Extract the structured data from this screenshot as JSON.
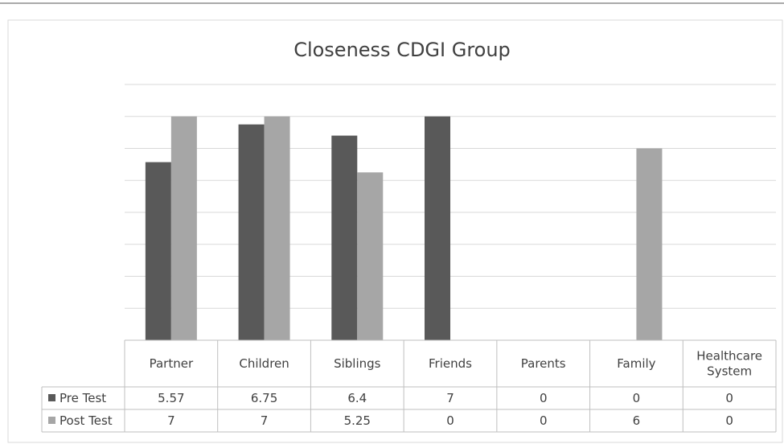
{
  "chart_data": {
    "type": "bar",
    "title": "Closeness CDGI Group",
    "categories": [
      "Partner",
      "Children",
      "Siblings",
      "Friends",
      "Parents",
      "Family",
      "Healthcare System"
    ],
    "category_lines": [
      [
        "Partner"
      ],
      [
        "Children"
      ],
      [
        "Siblings"
      ],
      [
        "Friends"
      ],
      [
        "Parents"
      ],
      [
        "Family"
      ],
      [
        "Healthcare",
        "System"
      ]
    ],
    "series": [
      {
        "name": "Pre Test",
        "values": [
          5.57,
          6.75,
          6.4,
          7,
          0,
          0,
          0
        ],
        "labels": [
          "5.57",
          "6.75",
          "6.4",
          "7",
          "0",
          "0",
          "0"
        ],
        "color": "#595959"
      },
      {
        "name": "Post Test",
        "values": [
          7,
          7,
          5.25,
          0,
          0,
          6,
          0
        ],
        "labels": [
          "7",
          "7",
          "5.25",
          "0",
          "0",
          "6",
          "0"
        ],
        "color": "#a6a6a6"
      }
    ],
    "ylim": [
      0,
      8
    ],
    "grid": true,
    "legend": "data-table",
    "data_table": true,
    "gridline_color": "#d9d9d9",
    "border_color": "#bfbfbf",
    "text_color": "#404040"
  }
}
